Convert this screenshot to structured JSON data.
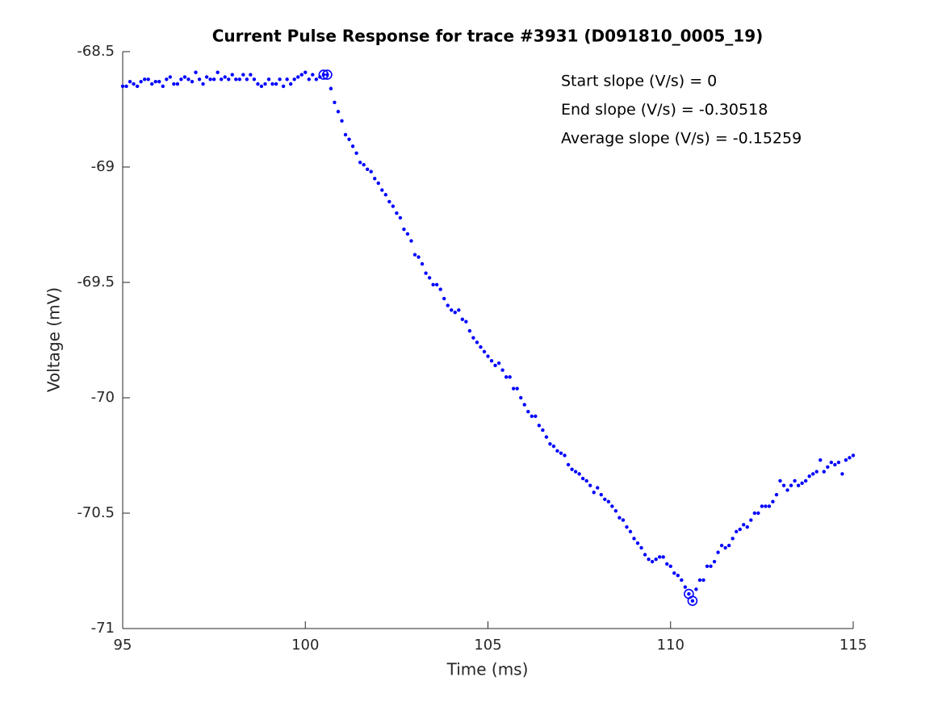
{
  "chart_data": {
    "type": "scatter",
    "title": "Current Pulse Response for trace #3931 (D091810_0005_19)",
    "xlabel": "Time (ms)",
    "ylabel": "Voltage (mV)",
    "annotations": [
      "Start slope (V/s) = 0",
      "End slope (V/s) = -0.30518",
      "Average slope (V/s) = -0.15259"
    ],
    "color": "#0000ff",
    "xlim": [
      95,
      115
    ],
    "xticks": [
      95,
      100,
      105,
      110,
      115
    ],
    "ylim": [
      -71,
      -68.5
    ],
    "yticks": [
      -71,
      -70.5,
      -70,
      -69.5,
      -69,
      -68.5
    ],
    "x": [
      95,
      95.1,
      95.2,
      95.3,
      95.4,
      95.5,
      95.6,
      95.7,
      95.8,
      95.9,
      96,
      96.1,
      96.2,
      96.3,
      96.4,
      96.5,
      96.6,
      96.7,
      96.8,
      96.9,
      97,
      97.1,
      97.2,
      97.3,
      97.4,
      97.5,
      97.6,
      97.7,
      97.8,
      97.9,
      98,
      98.1,
      98.2,
      98.3,
      98.4,
      98.5,
      98.6,
      98.7,
      98.8,
      98.9,
      99,
      99.1,
      99.2,
      99.3,
      99.4,
      99.5,
      99.6,
      99.7,
      99.8,
      99.9,
      100,
      100.1,
      100.2,
      100.3,
      100.4,
      100.5,
      100.6,
      100.7,
      100.8,
      100.9,
      101,
      101.1,
      101.2,
      101.3,
      101.4,
      101.5,
      101.6,
      101.7,
      101.8,
      101.9,
      102,
      102.1,
      102.2,
      102.3,
      102.4,
      102.5,
      102.6,
      102.7,
      102.8,
      102.9,
      103,
      103.1,
      103.2,
      103.3,
      103.4,
      103.5,
      103.6,
      103.7,
      103.8,
      103.9,
      104,
      104.1,
      104.2,
      104.3,
      104.4,
      104.5,
      104.6,
      104.7,
      104.8,
      104.9,
      105,
      105.1,
      105.2,
      105.3,
      105.4,
      105.5,
      105.6,
      105.7,
      105.8,
      105.9,
      106,
      106.1,
      106.2,
      106.3,
      106.4,
      106.5,
      106.6,
      106.7,
      106.8,
      106.9,
      107,
      107.1,
      107.2,
      107.3,
      107.4,
      107.5,
      107.6,
      107.7,
      107.8,
      107.9,
      108,
      108.1,
      108.2,
      108.3,
      108.4,
      108.5,
      108.6,
      108.7,
      108.8,
      108.9,
      109,
      109.1,
      109.2,
      109.3,
      109.4,
      109.5,
      109.6,
      109.7,
      109.8,
      109.9,
      110,
      110.1,
      110.2,
      110.3,
      110.4,
      110.5,
      110.6,
      110.7,
      110.8,
      110.9,
      111,
      111.1,
      111.2,
      111.3,
      111.4,
      111.5,
      111.6,
      111.7,
      111.8,
      111.9,
      112,
      112.1,
      112.2,
      112.3,
      112.4,
      112.5,
      112.6,
      112.7,
      112.8,
      112.9,
      113,
      113.1,
      113.2,
      113.3,
      113.4,
      113.5,
      113.6,
      113.7,
      113.8,
      113.9,
      114,
      114.1,
      114.2,
      114.3,
      114.4,
      114.5,
      114.6,
      114.7,
      114.8,
      114.9,
      115
    ],
    "values": [
      -68.65,
      -68.65,
      -68.63,
      -68.64,
      -68.65,
      -68.63,
      -68.62,
      -68.62,
      -68.64,
      -68.63,
      -68.63,
      -68.65,
      -68.62,
      -68.61,
      -68.64,
      -68.64,
      -68.62,
      -68.61,
      -68.62,
      -68.63,
      -68.59,
      -68.62,
      -68.64,
      -68.61,
      -68.62,
      -68.62,
      -68.59,
      -68.62,
      -68.61,
      -68.62,
      -68.6,
      -68.62,
      -68.62,
      -68.6,
      -68.62,
      -68.6,
      -68.62,
      -68.64,
      -68.65,
      -68.64,
      -68.62,
      -68.64,
      -68.64,
      -68.62,
      -68.65,
      -68.62,
      -68.64,
      -68.62,
      -68.61,
      -68.6,
      -68.59,
      -68.62,
      -68.6,
      -68.62,
      -68.61,
      -68.6,
      -68.6,
      -68.66,
      -68.72,
      -68.76,
      -68.8,
      -68.86,
      -68.88,
      -68.91,
      -68.94,
      -68.98,
      -68.99,
      -69.01,
      -69.02,
      -69.05,
      -69.07,
      -69.1,
      -69.12,
      -69.15,
      -69.17,
      -69.2,
      -69.22,
      -69.27,
      -69.29,
      -69.32,
      -69.38,
      -69.39,
      -69.42,
      -69.46,
      -69.48,
      -69.51,
      -69.51,
      -69.53,
      -69.57,
      -69.6,
      -69.62,
      -69.63,
      -69.62,
      -69.66,
      -69.67,
      -69.71,
      -69.74,
      -69.76,
      -69.78,
      -69.8,
      -69.82,
      -69.84,
      -69.86,
      -69.85,
      -69.88,
      -69.91,
      -69.91,
      -69.96,
      -69.96,
      -70,
      -70.03,
      -70.06,
      -70.08,
      -70.08,
      -70.12,
      -70.14,
      -70.17,
      -70.2,
      -70.21,
      -70.23,
      -70.24,
      -70.25,
      -70.29,
      -70.31,
      -70.32,
      -70.33,
      -70.35,
      -70.36,
      -70.38,
      -70.41,
      -70.39,
      -70.42,
      -70.44,
      -70.45,
      -70.47,
      -70.49,
      -70.52,
      -70.53,
      -70.56,
      -70.58,
      -70.61,
      -70.63,
      -70.65,
      -70.68,
      -70.7,
      -70.71,
      -70.7,
      -70.69,
      -70.69,
      -70.72,
      -70.73,
      -70.76,
      -70.77,
      -70.79,
      -70.82,
      -70.85,
      -70.88,
      -70.83,
      -70.79,
      -70.79,
      -70.73,
      -70.73,
      -70.71,
      -70.67,
      -70.64,
      -70.65,
      -70.64,
      -70.61,
      -70.58,
      -70.57,
      -70.55,
      -70.56,
      -70.53,
      -70.5,
      -70.5,
      -70.47,
      -70.47,
      -70.47,
      -70.45,
      -70.42,
      -70.36,
      -70.38,
      -70.4,
      -70.38,
      -70.36,
      -70.38,
      -70.37,
      -70.36,
      -70.34,
      -70.33,
      -70.32,
      -70.27,
      -70.32,
      -70.3,
      -70.28,
      -70.29,
      -70.28,
      -70.33,
      -70.27,
      -70.26,
      -70.25
    ],
    "markers_x": [
      100.5,
      100.6,
      110.5,
      110.6
    ],
    "markers_y": [
      -68.6,
      -68.6,
      -70.85,
      -70.88
    ]
  }
}
